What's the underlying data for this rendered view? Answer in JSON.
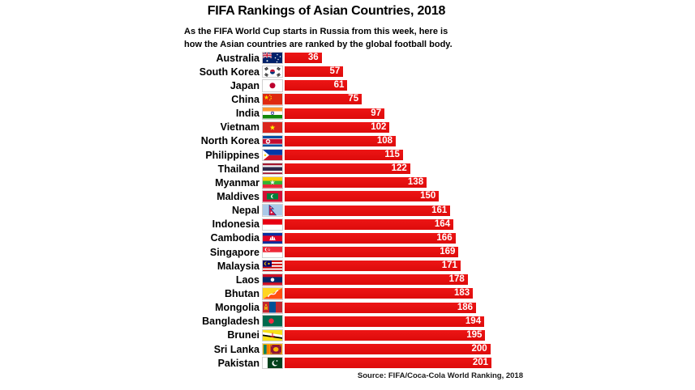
{
  "title": "FIFA Rankings of Asian Countries, 2018",
  "subtitle": [
    "As the FIFA World Cup starts in Russia from this week, here is",
    "how the Asian countries are ranked by the global football body."
  ],
  "source": "Source: FIFA/Coca-Cola World Ranking, 2018",
  "colors": {
    "bar": "#ed1515",
    "bar_dark": "#dd0b0b",
    "value_label": "#ffffff",
    "text": "#000000",
    "background": "#ffffff"
  },
  "chart_data": {
    "type": "bar",
    "orientation": "horizontal",
    "title": "FIFA Rankings of Asian Countries, 2018",
    "subtitle": "As the FIFA World Cup starts in Russia from this week, here is how the Asian countries are ranked by the global football body.",
    "source": "Source: FIFA/Coca-Cola World Ranking, 2018",
    "categories": [
      "Australia",
      "South Korea",
      "Japan",
      "China",
      "India",
      "Vietnam",
      "North Korea",
      "Philippines",
      "Thailand",
      "Myanmar",
      "Maldives",
      "Nepal",
      "Indonesia",
      "Cambodia",
      "Singapore",
      "Malaysia",
      "Laos",
      "Bhutan",
      "Mongolia",
      "Bangladesh",
      "Brunei",
      "Sri Lanka",
      "Pakistan"
    ],
    "values": [
      36,
      57,
      61,
      75,
      97,
      102,
      108,
      115,
      122,
      138,
      150,
      161,
      164,
      166,
      169,
      171,
      178,
      183,
      186,
      194,
      195,
      200,
      201
    ],
    "flags": [
      "australia",
      "south-korea",
      "japan",
      "china",
      "india",
      "vietnam",
      "north-korea",
      "philippines",
      "thailand",
      "myanmar",
      "maldives",
      "nepal",
      "indonesia",
      "cambodia",
      "singapore",
      "malaysia",
      "laos",
      "bhutan",
      "mongolia",
      "bangladesh",
      "brunei",
      "sri-lanka",
      "pakistan"
    ],
    "xlim": [
      0,
      201
    ],
    "data_labels": true,
    "grid": false,
    "legend": false,
    "axis_ticks": false
  }
}
